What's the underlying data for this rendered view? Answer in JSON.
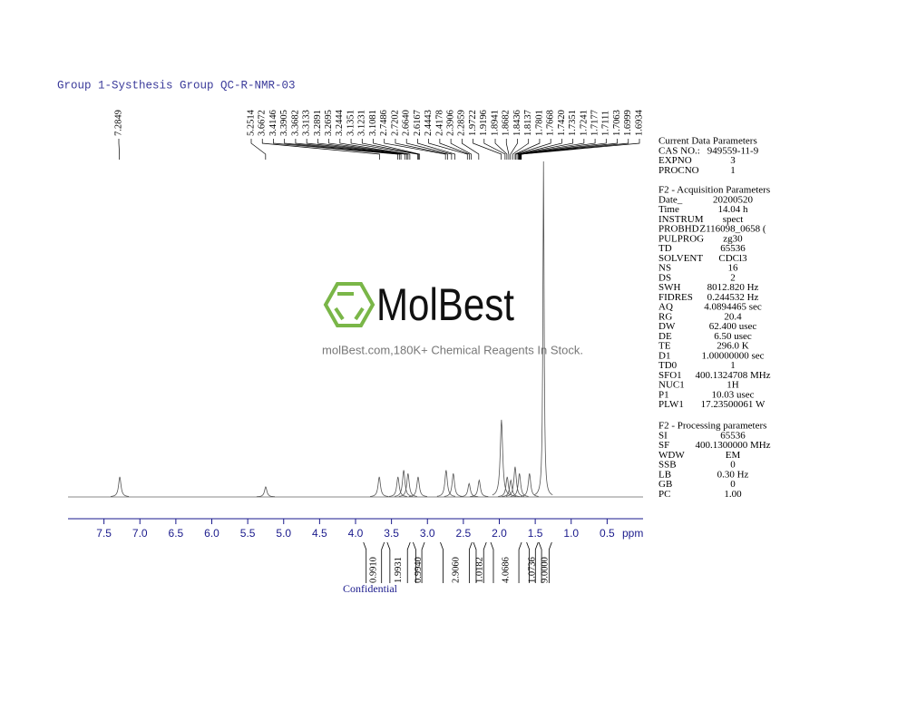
{
  "header": {
    "title": "Group 1-Systhesis Group QC-R-NMR-03"
  },
  "watermark": {
    "brand": "MolBest",
    "tagline": "molBest.com,180K+ Chemical Reagents In Stock."
  },
  "chart_data": {
    "type": "nmr",
    "xlim": [
      8,
      0
    ],
    "ylim": [
      0,
      100
    ],
    "xticks": [
      7.5,
      {
        "value": 7,
        "label": "7.0"
      },
      6.5,
      {
        "value": 6,
        "label": "6.0"
      },
      5.5,
      {
        "value": 5,
        "label": "5.0"
      },
      4.5,
      {
        "value": 4,
        "label": "4.0"
      },
      3.5,
      {
        "value": 3,
        "label": "3.0"
      },
      2.5,
      {
        "value": 2,
        "label": "2.0"
      },
      1.5,
      {
        "value": 1,
        "label": "1.0"
      },
      0.5
    ],
    "x_label": "ppm",
    "peaks": {
      "x": [
        7.28,
        5.25,
        3.67,
        3.41,
        3.33,
        3.27,
        3.13,
        2.74,
        2.64,
        2.42,
        2.28,
        1.97,
        1.89,
        1.84,
        1.78,
        1.72,
        1.58,
        1.385
      ],
      "values": [
        6,
        3,
        6,
        6,
        8,
        7,
        6,
        8,
        7,
        4,
        5,
        23,
        6,
        5,
        9,
        7,
        7,
        100
      ]
    },
    "peak_labels": [
      "7.2849",
      "5.2514",
      "3.6672",
      "3.4146",
      "3.3905",
      "3.3682",
      "3.3133",
      "3.2891",
      "3.2695",
      "3.2444",
      "3.1351",
      "3.1231",
      "3.1081",
      "2.7486",
      "2.7202",
      "2.6640",
      "2.6167",
      "2.4443",
      "2.4178",
      "2.3906",
      "2.2859",
      "1.9722",
      "1.9196",
      "1.8941",
      "1.8682",
      "1.8436",
      "1.8137",
      "1.7801",
      "1.7668",
      "1.7420",
      "1.7351",
      "1.7241",
      "1.7177",
      "1.7111",
      "1.7063",
      "1.6999",
      "1.6934"
    ],
    "integrals": {
      "ranges": [
        [
          3.89,
          3.6
        ],
        [
          3.56,
          3.24
        ],
        [
          3.2,
          3.04
        ],
        [
          2.82,
          2.38
        ],
        [
          2.36,
          2.18
        ],
        [
          2.12,
          1.69
        ],
        [
          1.62,
          1.46
        ],
        [
          1.45,
          1.27
        ]
      ],
      "values": [
        0.991,
        1.9931,
        0.994,
        2.906,
        1.0182,
        4.0686,
        1.0736,
        9
      ],
      "value_labels": [
        "0.9910",
        "1.9931",
        "0.9940",
        "2.9060",
        "1.0182",
        "4.0686",
        "1.0736",
        "9.0000"
      ]
    }
  },
  "parameters": [
    {
      "title": "Current Data Parameters",
      "rows": [
        [
          "CAS NO.:",
          "949559-11-9"
        ],
        [
          "EXPNO",
          "3"
        ],
        [
          "PROCNO",
          "1"
        ]
      ]
    },
    {
      "title": "F2 - Acquisition Parameters",
      "rows": [
        [
          "Date_",
          "20200520"
        ],
        [
          "Time",
          "14.04 h"
        ],
        [
          "INSTRUM",
          "spect"
        ],
        [
          "PROBHD",
          "Z116098_0658 ("
        ],
        [
          "PULPROG",
          "zg30"
        ],
        [
          "TD",
          "65536"
        ],
        [
          "SOLVENT",
          "CDCl3"
        ],
        [
          "NS",
          "16"
        ],
        [
          "DS",
          "2"
        ],
        [
          "SWH",
          "8012.820 Hz"
        ],
        [
          "FIDRES",
          "0.244532 Hz"
        ],
        [
          "AQ",
          "4.0894465 sec"
        ],
        [
          "RG",
          "20.4"
        ],
        [
          "DW",
          "62.400 usec"
        ],
        [
          "DE",
          "6.50 usec"
        ],
        [
          "TE",
          "296.0 K"
        ],
        [
          "D1",
          "1.00000000 sec"
        ],
        [
          "TD0",
          "1"
        ],
        [
          "SFO1",
          "400.1324708 MHz"
        ],
        [
          "NUC1",
          "1H"
        ],
        [
          "P1",
          "10.03 usec"
        ],
        [
          "PLW1",
          "17.23500061 W"
        ]
      ]
    },
    {
      "title": "F2 - Processing parameters",
      "rows": [
        [
          "SI",
          "65536"
        ],
        [
          "SF",
          "400.1300000 MHz"
        ],
        [
          "WDW",
          "EM"
        ],
        [
          "SSB",
          "0"
        ],
        [
          "LB",
          "0.30 Hz"
        ],
        [
          "GB",
          "0"
        ],
        [
          "PC",
          "1.00"
        ]
      ]
    }
  ],
  "footer": "Confidential"
}
